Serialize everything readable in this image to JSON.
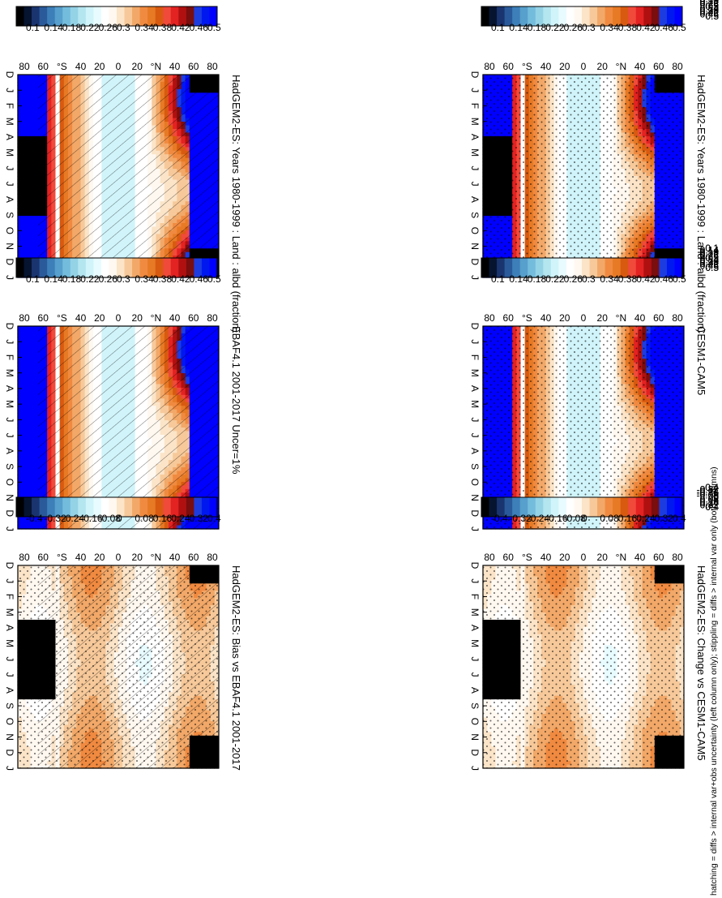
{
  "figure": {
    "footer": "hatching = diffs > internal var+obs uncertainty (left column only); stippling = diffs > internal var only (both columns)",
    "orientation": "rotated 90 degrees clockwise"
  },
  "colorbars": {
    "absolute": {
      "labels": [
        "0.5",
        "0.46",
        "0.42",
        "0.38",
        "0.34",
        "0.3",
        "0.26",
        "0.22",
        "0.18",
        "0.14",
        "0.1"
      ],
      "colors": [
        "#0000ff",
        "#0018f0",
        "#1c3ce0",
        "#7a0d0d",
        "#b01010",
        "#e32222",
        "#f04a3a",
        "#d85a10",
        "#e77a25",
        "#f08a40",
        "#f2a868",
        "#f7c99a",
        "#fbe4c8",
        "#fff8f0",
        "#ffffff",
        "#e8fbff",
        "#d0f4fa",
        "#b4e6f0",
        "#94d2e6",
        "#74bcdc",
        "#579fcc",
        "#3d7fb8",
        "#2a5a9a",
        "#1a3470",
        "#061430",
        "#000000"
      ]
    },
    "difference": {
      "labels": [
        "0.4",
        "0.32",
        "0.24",
        "0.16",
        "0.08",
        "0",
        "-0.08",
        "-0.16",
        "-0.24",
        "-0.32",
        "-0.4"
      ],
      "colors": [
        "#0000ff",
        "#0018f0",
        "#1c3ce0",
        "#7a0d0d",
        "#b01010",
        "#e32222",
        "#f04a3a",
        "#d85a10",
        "#e77a25",
        "#f08a40",
        "#f2a868",
        "#f7c99a",
        "#fbe4c8",
        "#fff8f0",
        "#ffffff",
        "#e8fbff",
        "#d0f4fa",
        "#b4e6f0",
        "#94d2e6",
        "#74bcdc",
        "#579fcc",
        "#3d7fb8",
        "#2a5a9a",
        "#1a3470",
        "#061430",
        "#000000"
      ]
    }
  },
  "axes": {
    "months": [
      "D",
      "J",
      "F",
      "M",
      "A",
      "M",
      "J",
      "J",
      "A",
      "S",
      "O",
      "N",
      "D",
      "J"
    ],
    "latitudes": [
      "80",
      "60",
      "40",
      "°N",
      "20",
      "0",
      "20",
      "40",
      "°S",
      "60",
      "80"
    ]
  },
  "chart_data": [
    {
      "type": "heatmap",
      "title": "HadGEM2-ES: Years 1980-1999 : Land : albd (fraction)",
      "x": [
        "D",
        "J",
        "F",
        "M",
        "A",
        "M",
        "J",
        "J",
        "A",
        "S",
        "O",
        "N",
        "D",
        "J"
      ],
      "y": [
        "80N",
        "60N",
        "40N",
        "20N",
        "0",
        "20S",
        "40S",
        "60S",
        "80S"
      ],
      "colorbar": "absolute",
      "overlay": "stippling",
      "summary": {
        "high_lat_n_winter": ">0.5",
        "tropics": "0.26-0.34",
        "lat_60S": "missing",
        "antarctic_winter": "<0.1"
      }
    },
    {
      "type": "heatmap",
      "title": "CESM1-CAM5",
      "x": [
        "D",
        "J",
        "F",
        "M",
        "A",
        "M",
        "J",
        "J",
        "A",
        "S",
        "O",
        "N",
        "D",
        "J"
      ],
      "y": [
        "80N",
        "60N",
        "40N",
        "20N",
        "0",
        "20S",
        "40S",
        "60S",
        "80S"
      ],
      "colorbar": "absolute",
      "overlay": "stippling"
    },
    {
      "type": "heatmap",
      "title": "HadGEM2-ES: Change vs CESM1-CAM5",
      "x": [
        "D",
        "J",
        "F",
        "M",
        "A",
        "M",
        "J",
        "J",
        "A",
        "S",
        "O",
        "N",
        "D",
        "J"
      ],
      "y": [
        "80N",
        "60N",
        "40N",
        "20N",
        "0",
        "20S",
        "40S",
        "60S",
        "80S"
      ],
      "colorbar": "difference",
      "overlay": "stippling"
    },
    {
      "type": "heatmap",
      "title": "HadGEM2-ES: Years 1980-1999 : Land : albd (fraction)",
      "x": [
        "D",
        "J",
        "F",
        "M",
        "A",
        "M",
        "J",
        "J",
        "A",
        "S",
        "O",
        "N",
        "D",
        "J"
      ],
      "y": [
        "80N",
        "60N",
        "40N",
        "20N",
        "0",
        "20S",
        "40S",
        "60S",
        "80S"
      ],
      "colorbar": "absolute",
      "overlay": "hatching"
    },
    {
      "type": "heatmap",
      "title": "EBAF4.1 2001-2017 Uncer=1%",
      "x": [
        "D",
        "J",
        "F",
        "M",
        "A",
        "M",
        "J",
        "J",
        "A",
        "S",
        "O",
        "N",
        "D",
        "J"
      ],
      "y": [
        "80N",
        "60N",
        "40N",
        "20N",
        "0",
        "20S",
        "40S",
        "60S",
        "80S"
      ],
      "colorbar": "absolute",
      "overlay": "hatching"
    },
    {
      "type": "heatmap",
      "title": "HadGEM2-ES: Bias vs EBAF4.1 2001-2017",
      "x": [
        "D",
        "J",
        "F",
        "M",
        "A",
        "M",
        "J",
        "J",
        "A",
        "S",
        "O",
        "N",
        "D",
        "J"
      ],
      "y": [
        "80N",
        "60N",
        "40N",
        "20N",
        "0",
        "20S",
        "40S",
        "60S",
        "80S"
      ],
      "colorbar": "difference",
      "overlay": "hatching+stippling"
    }
  ]
}
